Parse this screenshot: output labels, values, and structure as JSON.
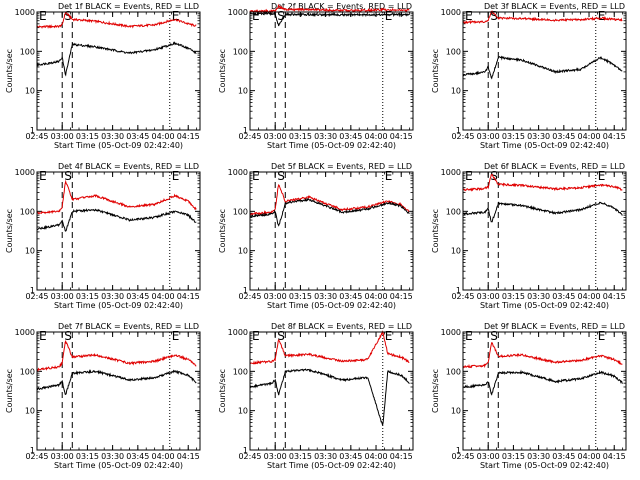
{
  "chart_data": [
    {
      "type": "line",
      "title": "Det 1f BLACK = Events, RED = LLD",
      "xlabel": "Start Time (05-Oct-09 02:42:40)",
      "ylabel": "Counts/sec",
      "yscale": "log",
      "ylim": [
        1,
        1000
      ],
      "xlim": [
        "02:45",
        "04:22"
      ],
      "x_ticks": [
        "02:45",
        "03:00",
        "03:15",
        "03:30",
        "03:45",
        "04:00",
        "04:15"
      ],
      "y_ticks": [
        "1",
        "10",
        "100",
        "1000"
      ],
      "markers": [
        {
          "label": "E",
          "time": "02:45",
          "style": "dotted"
        },
        {
          "label": "S",
          "time": "03:00",
          "style": "dashed"
        },
        {
          "label": "",
          "time": "03:06",
          "style": "dashed"
        },
        {
          "label": "E",
          "time": "04:04",
          "style": "dotted"
        }
      ],
      "series": [
        {
          "color": "#e00000",
          "x": [
            "02:45",
            "02:58",
            "03:00",
            "03:02",
            "03:06",
            "03:20",
            "03:40",
            "03:55",
            "04:07",
            "04:15",
            "04:20"
          ],
          "values": [
            420,
            430,
            470,
            1000,
            650,
            580,
            430,
            470,
            650,
            500,
            440
          ]
        },
        {
          "color": "#000000",
          "x": [
            "02:45",
            "02:58",
            "03:00",
            "03:02",
            "03:06",
            "03:20",
            "03:40",
            "03:55",
            "04:07",
            "04:15",
            "04:20"
          ],
          "values": [
            45,
            55,
            70,
            25,
            150,
            130,
            90,
            110,
            160,
            120,
            90
          ]
        }
      ]
    },
    {
      "type": "line",
      "title": "Det 2f BLACK = Events, RED = LLD",
      "xlabel": "Start Time (05-Oct-09 02:42:40)",
      "ylabel": "Counts/sec",
      "yscale": "log",
      "ylim": [
        1,
        1000
      ],
      "xlim": [
        "02:45",
        "04:22"
      ],
      "x_ticks": [
        "02:45",
        "03:00",
        "03:15",
        "03:30",
        "03:45",
        "04:00",
        "04:15"
      ],
      "y_ticks": [
        "1",
        "10",
        "100",
        "1000"
      ],
      "markers": [
        {
          "label": "E",
          "time": "02:45",
          "style": "dotted"
        },
        {
          "label": "S",
          "time": "03:00",
          "style": "dashed"
        },
        {
          "label": "",
          "time": "03:06",
          "style": "dashed"
        },
        {
          "label": "E",
          "time": "04:04",
          "style": "dotted"
        }
      ],
      "series": [
        {
          "color": "#e00000",
          "x": [
            "02:45",
            "02:58",
            "03:00",
            "03:02",
            "03:06",
            "03:20",
            "03:40",
            "03:55",
            "04:07",
            "04:15",
            "04:20"
          ],
          "values": [
            1050,
            1050,
            1080,
            1400,
            1150,
            1150,
            1100,
            1100,
            1150,
            1100,
            1100
          ]
        },
        {
          "color": "#000000",
          "x": [
            "02:45",
            "02:58",
            "03:00",
            "03:02",
            "03:06",
            "03:20",
            "03:40",
            "03:55",
            "04:07",
            "04:15",
            "04:20"
          ],
          "values": [
            900,
            900,
            880,
            450,
            870,
            860,
            850,
            850,
            860,
            860,
            850
          ]
        }
      ]
    },
    {
      "type": "line",
      "title": "Det 3f BLACK = Events, RED = LLD",
      "xlabel": "Start Time (05-Oct-09 02:42:40)",
      "ylabel": "Counts/sec",
      "yscale": "log",
      "ylim": [
        1,
        1000
      ],
      "xlim": [
        "02:45",
        "04:22"
      ],
      "x_ticks": [
        "02:45",
        "03:00",
        "03:15",
        "03:30",
        "03:45",
        "04:00",
        "04:15"
      ],
      "y_ticks": [
        "1",
        "10",
        "100",
        "1000"
      ],
      "markers": [
        {
          "label": "E",
          "time": "02:45",
          "style": "dotted"
        },
        {
          "label": "S",
          "time": "03:00",
          "style": "dashed"
        },
        {
          "label": "",
          "time": "03:06",
          "style": "dashed"
        },
        {
          "label": "E",
          "time": "04:04",
          "style": "dotted"
        }
      ],
      "series": [
        {
          "color": "#e00000",
          "x": [
            "02:45",
            "02:58",
            "03:00",
            "03:02",
            "03:06",
            "03:20",
            "03:40",
            "03:55",
            "04:07",
            "04:15",
            "04:20"
          ],
          "values": [
            550,
            560,
            600,
            1050,
            700,
            680,
            620,
            640,
            700,
            650,
            620
          ]
        },
        {
          "color": "#000000",
          "x": [
            "02:45",
            "02:58",
            "03:00",
            "03:02",
            "03:06",
            "03:20",
            "03:40",
            "03:55",
            "04:07",
            "04:15",
            "04:20"
          ],
          "values": [
            25,
            30,
            40,
            20,
            70,
            60,
            30,
            35,
            70,
            45,
            30
          ]
        }
      ]
    },
    {
      "type": "line",
      "title": "Det 4f BLACK = Events, RED = LLD",
      "xlabel": "Start Time (05-Oct-09 02:42:40)",
      "ylabel": "Counts/sec",
      "yscale": "log",
      "ylim": [
        1,
        1000
      ],
      "xlim": [
        "02:45",
        "04:22"
      ],
      "x_ticks": [
        "02:45",
        "03:00",
        "03:15",
        "03:30",
        "03:45",
        "04:00",
        "04:15"
      ],
      "y_ticks": [
        "1",
        "10",
        "100",
        "1000"
      ],
      "markers": [
        {
          "label": "E",
          "time": "02:45",
          "style": "dotted"
        },
        {
          "label": "S",
          "time": "03:00",
          "style": "dashed"
        },
        {
          "label": "",
          "time": "03:06",
          "style": "dashed"
        },
        {
          "label": "E",
          "time": "04:04",
          "style": "dotted"
        }
      ],
      "series": [
        {
          "color": "#e00000",
          "x": [
            "02:45",
            "02:58",
            "03:00",
            "03:02",
            "03:06",
            "03:20",
            "03:40",
            "03:55",
            "04:07",
            "04:15",
            "04:20"
          ],
          "values": [
            90,
            100,
            130,
            600,
            200,
            250,
            130,
            150,
            250,
            180,
            110
          ]
        },
        {
          "color": "#000000",
          "x": [
            "02:45",
            "02:58",
            "03:00",
            "03:02",
            "03:06",
            "03:20",
            "03:40",
            "03:55",
            "04:07",
            "04:15",
            "04:20"
          ],
          "values": [
            35,
            45,
            60,
            30,
            100,
            110,
            60,
            70,
            100,
            80,
            50
          ]
        }
      ]
    },
    {
      "type": "line",
      "title": "Det 5f BLACK = Events, RED = LLD",
      "xlabel": "Start Time (05-Oct-09 02:42:40)",
      "ylabel": "Counts/sec",
      "yscale": "log",
      "ylim": [
        1,
        1000
      ],
      "xlim": [
        "02:45",
        "04:22"
      ],
      "x_ticks": [
        "02:45",
        "03:00",
        "03:15",
        "03:30",
        "03:45",
        "04:00",
        "04:15"
      ],
      "y_ticks": [
        "1",
        "10",
        "100",
        "1000"
      ],
      "markers": [
        {
          "label": "E",
          "time": "02:45",
          "style": "dotted"
        },
        {
          "label": "S",
          "time": "03:00",
          "style": "dashed"
        },
        {
          "label": "",
          "time": "03:06",
          "style": "dashed"
        },
        {
          "label": "E",
          "time": "04:04",
          "style": "dotted"
        }
      ],
      "series": [
        {
          "color": "#e00000",
          "x": [
            "02:45",
            "02:58",
            "03:00",
            "03:02",
            "03:06",
            "03:20",
            "03:40",
            "03:55",
            "04:07",
            "04:15",
            "04:20"
          ],
          "values": [
            85,
            95,
            110,
            500,
            180,
            230,
            110,
            130,
            180,
            150,
            95
          ]
        },
        {
          "color": "#000000",
          "x": [
            "02:45",
            "02:58",
            "03:00",
            "03:02",
            "03:06",
            "03:20",
            "03:40",
            "03:55",
            "04:07",
            "04:15",
            "04:20"
          ],
          "values": [
            75,
            85,
            100,
            40,
            160,
            200,
            95,
            115,
            165,
            135,
            85
          ]
        }
      ]
    },
    {
      "type": "line",
      "title": "Det 6f BLACK = Events, RED = LLD",
      "xlabel": "Start Time (05-Oct-09 02:42:40)",
      "ylabel": "Counts/sec",
      "yscale": "log",
      "ylim": [
        1,
        1000
      ],
      "xlim": [
        "02:45",
        "04:22"
      ],
      "x_ticks": [
        "02:45",
        "03:00",
        "03:15",
        "03:30",
        "03:45",
        "04:00",
        "04:15"
      ],
      "y_ticks": [
        "1",
        "10",
        "100",
        "1000"
      ],
      "markers": [
        {
          "label": "E",
          "time": "02:45",
          "style": "dotted"
        },
        {
          "label": "S",
          "time": "03:00",
          "style": "dashed"
        },
        {
          "label": "",
          "time": "03:06",
          "style": "dashed"
        },
        {
          "label": "E",
          "time": "04:04",
          "style": "dotted"
        }
      ],
      "series": [
        {
          "color": "#e00000",
          "x": [
            "02:45",
            "02:58",
            "03:00",
            "03:02",
            "03:06",
            "03:20",
            "03:40",
            "03:55",
            "04:07",
            "04:15",
            "04:20"
          ],
          "values": [
            350,
            380,
            420,
            900,
            480,
            460,
            370,
            400,
            470,
            420,
            350
          ]
        },
        {
          "color": "#000000",
          "x": [
            "02:45",
            "02:58",
            "03:00",
            "03:02",
            "03:06",
            "03:20",
            "03:40",
            "03:55",
            "04:07",
            "04:15",
            "04:20"
          ],
          "values": [
            85,
            95,
            120,
            50,
            160,
            140,
            90,
            110,
            170,
            120,
            80
          ]
        }
      ]
    },
    {
      "type": "line",
      "title": "Det 7f BLACK = Events, RED = LLD",
      "xlabel": "Start Time (05-Oct-09 02:42:40)",
      "ylabel": "Counts/sec",
      "yscale": "log",
      "ylim": [
        1,
        1000
      ],
      "xlim": [
        "02:45",
        "04:22"
      ],
      "x_ticks": [
        "02:45",
        "03:00",
        "03:15",
        "03:30",
        "03:45",
        "04:00",
        "04:15"
      ],
      "y_ticks": [
        "1",
        "10",
        "100",
        "1000"
      ],
      "markers": [
        {
          "label": "E",
          "time": "02:45",
          "style": "dotted"
        },
        {
          "label": "S",
          "time": "03:00",
          "style": "dashed"
        },
        {
          "label": "",
          "time": "03:06",
          "style": "dashed"
        },
        {
          "label": "E",
          "time": "04:04",
          "style": "dotted"
        }
      ],
      "series": [
        {
          "color": "#e00000",
          "x": [
            "02:45",
            "02:58",
            "03:00",
            "03:02",
            "03:06",
            "03:20",
            "03:40",
            "03:55",
            "04:07",
            "04:15",
            "04:20"
          ],
          "values": [
            110,
            130,
            160,
            600,
            230,
            260,
            160,
            180,
            260,
            200,
            140
          ]
        },
        {
          "color": "#000000",
          "x": [
            "02:45",
            "02:58",
            "03:00",
            "03:02",
            "03:06",
            "03:20",
            "03:40",
            "03:55",
            "04:07",
            "04:15",
            "04:20"
          ],
          "values": [
            35,
            45,
            55,
            25,
            90,
            100,
            60,
            70,
            100,
            80,
            50
          ]
        }
      ]
    },
    {
      "type": "line",
      "title": "Det 8f BLACK = Events, RED = LLD",
      "xlabel": "Start Time (05-Oct-09 02:42:40)",
      "ylabel": "Counts/sec",
      "yscale": "log",
      "ylim": [
        1,
        1000
      ],
      "xlim": [
        "02:45",
        "04:22"
      ],
      "x_ticks": [
        "02:45",
        "03:00",
        "03:15",
        "03:30",
        "03:45",
        "04:00",
        "04:15"
      ],
      "y_ticks": [
        "1",
        "10",
        "100",
        "1000"
      ],
      "markers": [
        {
          "label": "E",
          "time": "02:45",
          "style": "dotted"
        },
        {
          "label": "S",
          "time": "03:00",
          "style": "dashed"
        },
        {
          "label": "",
          "time": "03:06",
          "style": "dashed"
        },
        {
          "label": "E",
          "time": "04:04",
          "style": "dotted"
        }
      ],
      "series": [
        {
          "color": "#e00000",
          "x": [
            "02:45",
            "02:58",
            "03:00",
            "03:02",
            "03:06",
            "03:20",
            "03:40",
            "03:55",
            "04:04",
            "04:07",
            "04:15",
            "04:20"
          ],
          "values": [
            160,
            180,
            200,
            650,
            250,
            270,
            180,
            200,
            1000,
            280,
            230,
            170
          ]
        },
        {
          "color": "#000000",
          "x": [
            "02:45",
            "02:58",
            "03:00",
            "03:02",
            "03:06",
            "03:20",
            "03:40",
            "03:55",
            "04:04",
            "04:07",
            "04:15",
            "04:20"
          ],
          "values": [
            40,
            50,
            60,
            25,
            100,
            110,
            60,
            70,
            4,
            100,
            80,
            50
          ]
        }
      ]
    },
    {
      "type": "line",
      "title": "Det 9f BLACK = Events, RED = LLD",
      "xlabel": "Start Time (05-Oct-09 02:42:40)",
      "ylabel": "Counts/sec",
      "yscale": "log",
      "ylim": [
        1,
        1000
      ],
      "xlim": [
        "02:45",
        "04:22"
      ],
      "x_ticks": [
        "02:45",
        "03:00",
        "03:15",
        "03:30",
        "03:45",
        "04:00",
        "04:15"
      ],
      "y_ticks": [
        "1",
        "10",
        "100",
        "1000"
      ],
      "markers": [
        {
          "label": "E",
          "time": "02:45",
          "style": "dotted"
        },
        {
          "label": "S",
          "time": "03:00",
          "style": "dashed"
        },
        {
          "label": "",
          "time": "03:06",
          "style": "dashed"
        },
        {
          "label": "E",
          "time": "04:04",
          "style": "dotted"
        }
      ],
      "series": [
        {
          "color": "#e00000",
          "x": [
            "02:45",
            "02:58",
            "03:00",
            "03:02",
            "03:06",
            "03:20",
            "03:40",
            "03:55",
            "04:07",
            "04:15",
            "04:20"
          ],
          "values": [
            130,
            140,
            170,
            550,
            240,
            260,
            170,
            190,
            250,
            200,
            150
          ]
        },
        {
          "color": "#000000",
          "x": [
            "02:45",
            "02:58",
            "03:00",
            "03:02",
            "03:06",
            "03:20",
            "03:40",
            "03:55",
            "04:07",
            "04:15",
            "04:20"
          ],
          "values": [
            40,
            45,
            55,
            25,
            90,
            95,
            55,
            65,
            95,
            75,
            50
          ]
        }
      ]
    }
  ]
}
